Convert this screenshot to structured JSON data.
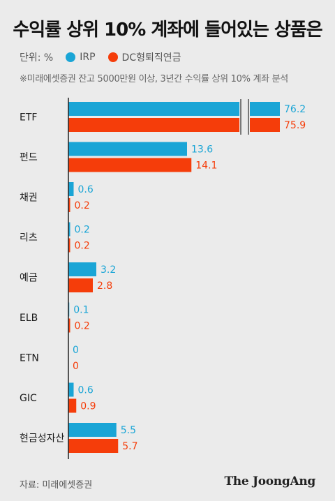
{
  "title": "수익률 상위 10% 계좌에 들어있는 상품은",
  "legend": {
    "unit": "단위: %",
    "items": [
      {
        "label": "IRP",
        "color": "#1aa5d6"
      },
      {
        "label": "DC형퇴직연금",
        "color": "#f53d0a"
      }
    ]
  },
  "note": "※미래에셋증권 잔고 5000만원 이상, 3년간 수익률 상위 10% 계좌 분석",
  "source": "자료: 미래에셋증권",
  "brand": "The JoongAng",
  "chart_data": {
    "type": "bar",
    "orientation": "horizontal",
    "axis_break": true,
    "categories": [
      "ETF",
      "펀드",
      "채권",
      "리츠",
      "예금",
      "ELB",
      "ETN",
      "GIC",
      "현금성자산"
    ],
    "series": [
      {
        "name": "IRP",
        "color": "#1aa5d6",
        "values": [
          76.2,
          13.6,
          0.6,
          0.2,
          3.2,
          0.1,
          0,
          0.6,
          5.5
        ]
      },
      {
        "name": "DC형퇴직연금",
        "color": "#f53d0a",
        "values": [
          75.9,
          14.1,
          0.2,
          0.2,
          2.8,
          0.2,
          0,
          0.9,
          5.7
        ]
      }
    ]
  }
}
